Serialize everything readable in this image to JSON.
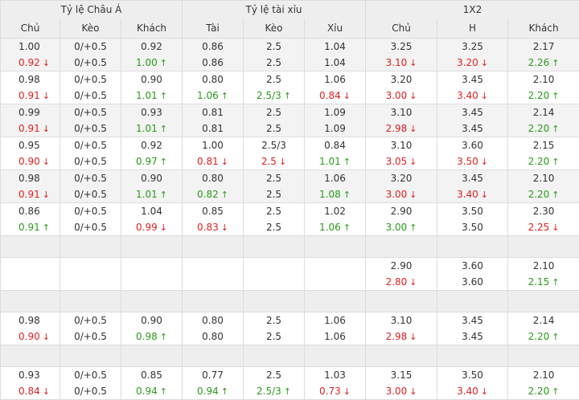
{
  "groups": [
    "Tỷ lệ Châu Á",
    "Tỷ lệ tài xỉu",
    "1X2"
  ],
  "columns": [
    "Chủ",
    "Kèo",
    "Khách",
    "Tài",
    "Kèo",
    "Xỉu",
    "Chủ",
    "H",
    "Khách"
  ],
  "colors": {
    "up": "#2a9a1a",
    "down": "#e02020",
    "header_bg": "#eeeeee",
    "border": "#dcdcdc"
  },
  "icons": {
    "up": "arrow-up-icon",
    "down": "arrow-down-icon"
  },
  "rows": [
    {
      "type": "data",
      "alt": true,
      "cells": [
        [
          {
            "v": "1.00"
          },
          {
            "v": "0.92",
            "d": "down"
          }
        ],
        [
          {
            "v": "0/+0.5"
          },
          {
            "v": "0/+0.5"
          }
        ],
        [
          {
            "v": "0.92"
          },
          {
            "v": "1.00",
            "d": "up"
          }
        ],
        [
          {
            "v": "0.86"
          },
          {
            "v": "0.86"
          }
        ],
        [
          {
            "v": "2.5"
          },
          {
            "v": "2.5"
          }
        ],
        [
          {
            "v": "1.04"
          },
          {
            "v": "1.04"
          }
        ],
        [
          {
            "v": "3.25"
          },
          {
            "v": "3.10",
            "d": "down"
          }
        ],
        [
          {
            "v": "3.25"
          },
          {
            "v": "3.20",
            "d": "down"
          }
        ],
        [
          {
            "v": "2.17"
          },
          {
            "v": "2.26",
            "d": "up"
          }
        ]
      ]
    },
    {
      "type": "data",
      "alt": false,
      "cells": [
        [
          {
            "v": "0.98"
          },
          {
            "v": "0.91",
            "d": "down"
          }
        ],
        [
          {
            "v": "0/+0.5"
          },
          {
            "v": "0/+0.5"
          }
        ],
        [
          {
            "v": "0.90"
          },
          {
            "v": "1.01",
            "d": "up"
          }
        ],
        [
          {
            "v": "0.80"
          },
          {
            "v": "1.06",
            "d": "up"
          }
        ],
        [
          {
            "v": "2.5"
          },
          {
            "v": "2.5/3",
            "d": "up"
          }
        ],
        [
          {
            "v": "1.06"
          },
          {
            "v": "0.84",
            "d": "down"
          }
        ],
        [
          {
            "v": "3.20"
          },
          {
            "v": "3.00",
            "d": "down"
          }
        ],
        [
          {
            "v": "3.45"
          },
          {
            "v": "3.40",
            "d": "down"
          }
        ],
        [
          {
            "v": "2.10"
          },
          {
            "v": "2.20",
            "d": "up"
          }
        ]
      ]
    },
    {
      "type": "data",
      "alt": true,
      "cells": [
        [
          {
            "v": "0.99"
          },
          {
            "v": "0.91",
            "d": "down"
          }
        ],
        [
          {
            "v": "0/+0.5"
          },
          {
            "v": "0/+0.5"
          }
        ],
        [
          {
            "v": "0.93"
          },
          {
            "v": "1.01",
            "d": "up"
          }
        ],
        [
          {
            "v": "0.81"
          },
          {
            "v": "0.81"
          }
        ],
        [
          {
            "v": "2.5"
          },
          {
            "v": "2.5"
          }
        ],
        [
          {
            "v": "1.09"
          },
          {
            "v": "1.09"
          }
        ],
        [
          {
            "v": "3.10"
          },
          {
            "v": "2.98",
            "d": "down"
          }
        ],
        [
          {
            "v": "3.45"
          },
          {
            "v": "3.45"
          }
        ],
        [
          {
            "v": "2.14"
          },
          {
            "v": "2.20",
            "d": "up"
          }
        ]
      ]
    },
    {
      "type": "data",
      "alt": false,
      "cells": [
        [
          {
            "v": "0.95"
          },
          {
            "v": "0.90",
            "d": "down"
          }
        ],
        [
          {
            "v": "0/+0.5"
          },
          {
            "v": "0/+0.5"
          }
        ],
        [
          {
            "v": "0.92"
          },
          {
            "v": "0.97",
            "d": "up"
          }
        ],
        [
          {
            "v": "1.00"
          },
          {
            "v": "0.81",
            "d": "down"
          }
        ],
        [
          {
            "v": "2.5/3"
          },
          {
            "v": "2.5",
            "d": "down"
          }
        ],
        [
          {
            "v": "0.84"
          },
          {
            "v": "1.01",
            "d": "up"
          }
        ],
        [
          {
            "v": "3.10"
          },
          {
            "v": "3.05",
            "d": "down"
          }
        ],
        [
          {
            "v": "3.60"
          },
          {
            "v": "3.50",
            "d": "down"
          }
        ],
        [
          {
            "v": "2.15"
          },
          {
            "v": "2.20",
            "d": "up"
          }
        ]
      ]
    },
    {
      "type": "data",
      "alt": true,
      "cells": [
        [
          {
            "v": "0.98"
          },
          {
            "v": "0.91",
            "d": "down"
          }
        ],
        [
          {
            "v": "0/+0.5"
          },
          {
            "v": "0/+0.5"
          }
        ],
        [
          {
            "v": "0.90"
          },
          {
            "v": "1.01",
            "d": "up"
          }
        ],
        [
          {
            "v": "0.80"
          },
          {
            "v": "0.82",
            "d": "up"
          }
        ],
        [
          {
            "v": "2.5"
          },
          {
            "v": "2.5"
          }
        ],
        [
          {
            "v": "1.06"
          },
          {
            "v": "1.08",
            "d": "up"
          }
        ],
        [
          {
            "v": "3.20"
          },
          {
            "v": "3.00",
            "d": "down"
          }
        ],
        [
          {
            "v": "3.45"
          },
          {
            "v": "3.40",
            "d": "down"
          }
        ],
        [
          {
            "v": "2.10"
          },
          {
            "v": "2.20",
            "d": "up"
          }
        ]
      ]
    },
    {
      "type": "data",
      "alt": false,
      "cells": [
        [
          {
            "v": "0.86"
          },
          {
            "v": "0.91",
            "d": "up"
          }
        ],
        [
          {
            "v": "0/+0.5"
          },
          {
            "v": "0/+0.5"
          }
        ],
        [
          {
            "v": "1.04"
          },
          {
            "v": "0.99",
            "d": "down"
          }
        ],
        [
          {
            "v": "0.85"
          },
          {
            "v": "0.83",
            "d": "down"
          }
        ],
        [
          {
            "v": "2.5"
          },
          {
            "v": "2.5"
          }
        ],
        [
          {
            "v": "1.02"
          },
          {
            "v": "1.06",
            "d": "up"
          }
        ],
        [
          {
            "v": "2.90"
          },
          {
            "v": "3.00",
            "d": "up"
          }
        ],
        [
          {
            "v": "3.50"
          },
          {
            "v": "3.50"
          }
        ],
        [
          {
            "v": "2.30"
          },
          {
            "v": "2.25",
            "d": "down"
          }
        ]
      ]
    },
    {
      "type": "empty"
    },
    {
      "type": "data",
      "alt": false,
      "cells": [
        [],
        [],
        [],
        [],
        [],
        [],
        [
          {
            "v": "2.90"
          },
          {
            "v": "2.80",
            "d": "down"
          }
        ],
        [
          {
            "v": "3.60"
          },
          {
            "v": "3.60"
          }
        ],
        [
          {
            "v": "2.10"
          },
          {
            "v": "2.15",
            "d": "up"
          }
        ]
      ]
    },
    {
      "type": "empty"
    },
    {
      "type": "data",
      "alt": false,
      "cells": [
        [
          {
            "v": "0.98"
          },
          {
            "v": "0.90",
            "d": "down"
          }
        ],
        [
          {
            "v": "0/+0.5"
          },
          {
            "v": "0/+0.5"
          }
        ],
        [
          {
            "v": "0.90"
          },
          {
            "v": "0.98",
            "d": "up"
          }
        ],
        [
          {
            "v": "0.80"
          },
          {
            "v": "0.80"
          }
        ],
        [
          {
            "v": "2.5"
          },
          {
            "v": "2.5"
          }
        ],
        [
          {
            "v": "1.06"
          },
          {
            "v": "1.06"
          }
        ],
        [
          {
            "v": "3.10"
          },
          {
            "v": "2.98",
            "d": "down"
          }
        ],
        [
          {
            "v": "3.45"
          },
          {
            "v": "3.45"
          }
        ],
        [
          {
            "v": "2.14"
          },
          {
            "v": "2.20",
            "d": "up"
          }
        ]
      ]
    },
    {
      "type": "empty"
    },
    {
      "type": "data",
      "alt": false,
      "cells": [
        [
          {
            "v": "0.93"
          },
          {
            "v": "0.84",
            "d": "down"
          }
        ],
        [
          {
            "v": "0/+0.5"
          },
          {
            "v": "0/+0.5"
          }
        ],
        [
          {
            "v": "0.85"
          },
          {
            "v": "0.94",
            "d": "up"
          }
        ],
        [
          {
            "v": "0.77"
          },
          {
            "v": "0.94",
            "d": "up"
          }
        ],
        [
          {
            "v": "2.5"
          },
          {
            "v": "2.5/3",
            "d": "up"
          }
        ],
        [
          {
            "v": "1.03"
          },
          {
            "v": "0.73",
            "d": "down"
          }
        ],
        [
          {
            "v": "3.15"
          },
          {
            "v": "3.00",
            "d": "down"
          }
        ],
        [
          {
            "v": "3.50"
          },
          {
            "v": "3.40",
            "d": "down"
          }
        ],
        [
          {
            "v": "2.10"
          },
          {
            "v": "2.20",
            "d": "up"
          }
        ]
      ]
    }
  ]
}
